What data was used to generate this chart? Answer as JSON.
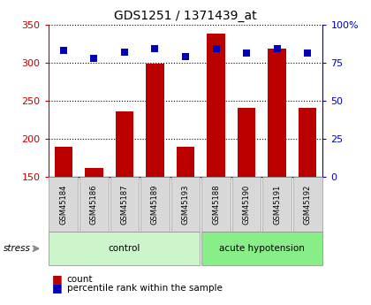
{
  "title": "GDS1251 / 1371439_at",
  "samples": [
    "GSM45184",
    "GSM45186",
    "GSM45187",
    "GSM45189",
    "GSM45193",
    "GSM45188",
    "GSM45190",
    "GSM45191",
    "GSM45192"
  ],
  "counts": [
    190,
    162,
    236,
    298,
    190,
    338,
    240,
    318,
    240
  ],
  "percentiles": [
    83,
    78,
    82,
    84,
    79,
    84,
    81,
    84,
    81
  ],
  "groups": [
    "control",
    "control",
    "control",
    "control",
    "control",
    "acute hypotension",
    "acute hypotension",
    "acute hypotension",
    "acute hypotension"
  ],
  "group_colors": {
    "control": "#ccf5cc",
    "acute hypotension": "#88ee88"
  },
  "bar_color": "#bb0000",
  "dot_color": "#0000bb",
  "ylim_left": [
    150,
    350
  ],
  "ylim_right": [
    0,
    100
  ],
  "yticks_left": [
    150,
    200,
    250,
    300,
    350
  ],
  "yticks_right": [
    0,
    25,
    50,
    75,
    100
  ],
  "ytick_labels_right": [
    "0",
    "25",
    "50",
    "75",
    "100%"
  ],
  "stress_label": "stress",
  "legend_count": "count",
  "legend_pct": "percentile rank within the sample",
  "n_control": 5,
  "n_total": 9
}
